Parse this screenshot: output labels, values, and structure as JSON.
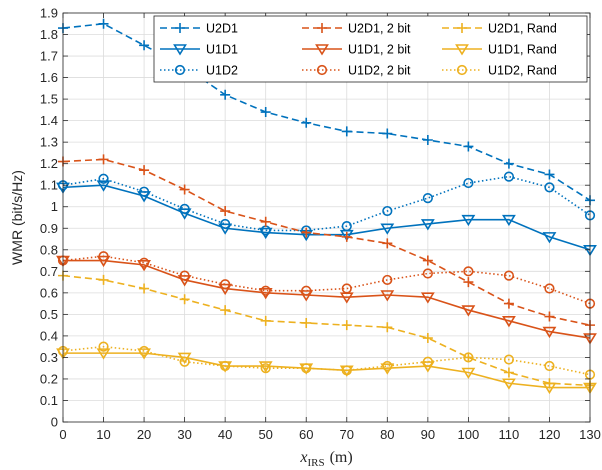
{
  "chart_data": {
    "type": "line",
    "x": [
      0,
      10,
      20,
      30,
      40,
      50,
      60,
      70,
      80,
      90,
      100,
      110,
      120,
      130
    ],
    "xlabel_main": "x",
    "xlabel_sub": "IRS",
    "xlabel_unit": "(m)",
    "ylabel": "WMR (bit/s/Hz)",
    "xlim": [
      0,
      130
    ],
    "ylim": [
      0,
      1.9
    ],
    "xticks": [
      0,
      10,
      20,
      30,
      40,
      50,
      60,
      70,
      80,
      90,
      100,
      110,
      120,
      130
    ],
    "xtick_labels": [
      "0",
      "10",
      "20",
      "30",
      "40",
      "50",
      "60",
      "70",
      "80",
      "90",
      "100",
      "110",
      "120",
      "130"
    ],
    "yticks": [
      0,
      0.1,
      0.2,
      0.3,
      0.4,
      0.5,
      0.6,
      0.7,
      0.8,
      0.9,
      1,
      1.1,
      1.2,
      1.3,
      1.4,
      1.5,
      1.6,
      1.7,
      1.8,
      1.9
    ],
    "ytick_labels": [
      "0",
      "0.1",
      "0.2",
      "0.3",
      "0.4",
      "0.5",
      "0.6",
      "0.7",
      "0.8",
      "0.9",
      "1",
      "1.1",
      "1.2",
      "1.3",
      "1.4",
      "1.5",
      "1.6",
      "1.7",
      "1.8",
      "1.9"
    ],
    "grid": true,
    "legend_position": "top-right",
    "legend_columns": 3,
    "series": [
      {
        "name": "U2D1",
        "color": "#0072BD",
        "marker": "plus",
        "line": "dashed",
        "values": [
          1.83,
          1.85,
          1.75,
          1.65,
          1.52,
          1.44,
          1.39,
          1.35,
          1.34,
          1.31,
          1.28,
          1.2,
          1.15,
          1.03
        ]
      },
      {
        "name": "U1D1",
        "color": "#0072BD",
        "marker": "triangle-down",
        "line": "solid",
        "values": [
          1.09,
          1.1,
          1.05,
          0.97,
          0.9,
          0.88,
          0.87,
          0.87,
          0.9,
          0.92,
          0.94,
          0.94,
          0.86,
          0.8
        ]
      },
      {
        "name": "U1D2",
        "color": "#0072BD",
        "marker": "circle",
        "line": "dotted",
        "values": [
          1.1,
          1.13,
          1.07,
          0.99,
          0.92,
          0.89,
          0.89,
          0.91,
          0.98,
          1.04,
          1.11,
          1.14,
          1.09,
          0.96
        ]
      },
      {
        "name": "U2D1, 2 bit",
        "color": "#D95319",
        "marker": "plus",
        "line": "dashed",
        "values": [
          1.21,
          1.22,
          1.17,
          1.08,
          0.98,
          0.93,
          0.88,
          0.86,
          0.83,
          0.75,
          0.65,
          0.55,
          0.49,
          0.45
        ]
      },
      {
        "name": "U1D1, 2 bit",
        "color": "#D95319",
        "marker": "triangle-down",
        "line": "solid",
        "values": [
          0.75,
          0.75,
          0.73,
          0.66,
          0.62,
          0.6,
          0.59,
          0.58,
          0.59,
          0.58,
          0.52,
          0.47,
          0.42,
          0.39
        ]
      },
      {
        "name": "U1D2, 2 bit",
        "color": "#D95319",
        "marker": "circle",
        "line": "dotted",
        "values": [
          0.75,
          0.77,
          0.74,
          0.68,
          0.64,
          0.61,
          0.61,
          0.62,
          0.66,
          0.69,
          0.7,
          0.68,
          0.62,
          0.55
        ]
      },
      {
        "name": "U2D1, Rand",
        "color": "#EDB120",
        "marker": "plus",
        "line": "dashed",
        "values": [
          0.68,
          0.66,
          0.62,
          0.57,
          0.52,
          0.47,
          0.46,
          0.45,
          0.44,
          0.39,
          0.3,
          0.23,
          0.18,
          0.17
        ]
      },
      {
        "name": "U1D1, Rand",
        "color": "#EDB120",
        "marker": "triangle-down",
        "line": "solid",
        "values": [
          0.32,
          0.32,
          0.32,
          0.3,
          0.26,
          0.26,
          0.25,
          0.24,
          0.25,
          0.26,
          0.23,
          0.18,
          0.16,
          0.16
        ]
      },
      {
        "name": "U1D2, Rand",
        "color": "#EDB120",
        "marker": "circle",
        "line": "dotted",
        "values": [
          0.33,
          0.35,
          0.33,
          0.28,
          0.26,
          0.25,
          0.25,
          0.24,
          0.26,
          0.28,
          0.3,
          0.29,
          0.26,
          0.22
        ]
      }
    ]
  }
}
